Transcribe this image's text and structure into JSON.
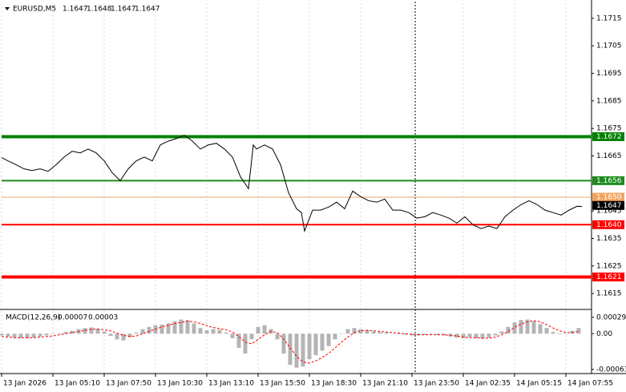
{
  "chart_data": [
    {
      "type": "line",
      "title": "EURUSD,M5",
      "ohlc": [
        1.1647,
        1.1648,
        1.1647,
        1.1647
      ],
      "color": "#000000",
      "x": [
        0,
        4,
        9,
        14,
        19,
        24,
        29,
        34,
        39,
        44,
        49,
        54,
        59,
        64,
        69,
        74,
        79,
        84,
        89,
        94,
        99,
        104,
        109,
        114,
        119,
        124,
        129,
        134,
        139,
        144,
        149,
        154,
        157,
        159,
        164,
        169,
        174,
        179,
        184,
        187,
        189,
        194,
        199,
        204,
        209,
        214,
        219,
        224,
        229,
        234,
        239,
        244,
        249,
        254,
        259,
        264,
        269,
        274,
        279,
        284,
        289,
        294,
        299,
        304,
        309,
        314,
        319,
        324,
        329,
        334,
        339,
        344,
        349,
        354,
        359,
        362
      ],
      "values": [
        1.16644,
        1.16632,
        1.16618,
        1.16603,
        1.16597,
        1.16603,
        1.16594,
        1.16618,
        1.16646,
        1.16667,
        1.16661,
        1.16675,
        1.16661,
        1.16632,
        1.16589,
        1.1656,
        1.16603,
        1.16632,
        1.16646,
        1.16632,
        1.1669,
        1.16704,
        1.16713,
        1.16725,
        1.16704,
        1.16675,
        1.1669,
        1.16696,
        1.16675,
        1.16646,
        1.16574,
        1.16531,
        1.1669,
        1.16675,
        1.1669,
        1.16675,
        1.16618,
        1.16516,
        1.16458,
        1.16444,
        1.16377,
        1.16453,
        1.16453,
        1.16464,
        1.16482,
        1.16458,
        1.16522,
        1.16502,
        1.16487,
        1.16482,
        1.16493,
        1.16453,
        1.16453,
        1.16444,
        1.16424,
        1.16429,
        1.16444,
        1.16435,
        1.16424,
        1.16406,
        1.16429,
        1.164,
        1.16386,
        1.16395,
        1.16386,
        1.16429,
        1.16453,
        1.16473,
        1.16487,
        1.16473,
        1.16453,
        1.16444,
        1.16435,
        1.16453,
        1.16467,
        1.16466
      ],
      "xlim": [
        0,
        368
      ],
      "xticks": [
        {
          "value": 0,
          "label": "13 Jan 2026"
        },
        {
          "value": 32,
          "label": "13 Jan 05:10"
        },
        {
          "value": 64,
          "label": "13 Jan 07:50"
        },
        {
          "value": 96,
          "label": "13 Jan 10:30"
        },
        {
          "value": 128,
          "label": "13 Jan 13:10"
        },
        {
          "value": 160,
          "label": "13 Jan 15:50"
        },
        {
          "value": 192,
          "label": "13 Jan 18:30"
        },
        {
          "value": 224,
          "label": "13 Jan 21:10"
        },
        {
          "value": 256,
          "label": "13 Jan 23:50"
        },
        {
          "value": 288,
          "label": "14 Jan 02:35"
        },
        {
          "value": 320,
          "label": "14 Jan 05:15"
        },
        {
          "value": 352,
          "label": "14 Jan 07:55"
        }
      ],
      "ylim": [
        1.16095,
        1.17205
      ],
      "yticks": [
        1.1615,
        1.1625,
        1.1635,
        1.1645,
        1.1665,
        1.1675,
        1.1685,
        1.1695,
        1.1705,
        1.1715
      ],
      "grid": true,
      "levels": [
        {
          "value": 1.1672,
          "label": "1.1672",
          "color": "#008000",
          "width": 4
        },
        {
          "value": 1.1656,
          "label": "1.1656",
          "color": "#1e8c1e",
          "width": 2
        },
        {
          "value": 1.165,
          "label": "1.1650",
          "color": "#f4a460",
          "width": 1
        },
        {
          "value": 1.164,
          "label": "1.1640",
          "color": "#ff0000",
          "width": 2
        },
        {
          "value": 1.1621,
          "label": "1.1621",
          "color": "#ff0000",
          "width": 4
        }
      ],
      "last": 1.1647
    },
    {
      "type": "macd",
      "title": "MACD(12,26,9)",
      "title_values": [
        7e-05,
        3e-05
      ],
      "x": [
        0,
        4,
        8,
        12,
        16,
        20,
        24,
        28,
        32,
        36,
        40,
        44,
        48,
        52,
        56,
        60,
        64,
        68,
        72,
        76,
        80,
        84,
        88,
        92,
        96,
        100,
        104,
        108,
        112,
        116,
        120,
        124,
        128,
        132,
        136,
        140,
        144,
        148,
        152,
        156,
        160,
        164,
        168,
        172,
        176,
        180,
        184,
        188,
        192,
        196,
        200,
        204,
        208,
        212,
        216,
        220,
        224,
        228,
        232,
        236,
        240,
        244,
        248,
        252,
        256,
        260,
        264,
        268,
        272,
        276,
        280,
        284,
        288,
        292,
        296,
        300,
        304,
        308,
        312,
        316,
        320,
        324,
        328,
        332,
        336,
        340,
        344,
        348,
        352,
        356,
        360
      ],
      "histogram": {
        "color": "#b4b4b4",
        "values": [
          -3e-05,
          -5e-05,
          -7e-05,
          -8e-05,
          -8e-05,
          -7e-05,
          -5e-05,
          -3e-05,
          -1e-05,
          1e-05,
          3e-05,
          5e-05,
          8e-05,
          0.0001,
          0.00011,
          9e-05,
          4e-05,
          -4e-05,
          -0.0001,
          -0.00012,
          -6e-05,
          2e-05,
          8e-05,
          0.00012,
          0.00015,
          0.00016,
          0.00018,
          0.00022,
          0.00025,
          0.00024,
          0.00018,
          0.0001,
          6e-05,
          8e-05,
          7e-05,
          2e-05,
          -8e-05,
          -0.00025,
          -0.00035,
          -0.0001,
          0.00012,
          0.00015,
          8e-05,
          -0.0001,
          -0.00035,
          -0.00055,
          -0.0006,
          -0.00058,
          -0.00045,
          -0.00038,
          -0.0003,
          -0.00022,
          -0.0001,
          0,
          8e-05,
          0.0001,
          8e-05,
          6e-05,
          4e-05,
          3e-05,
          2e-05,
          0,
          -1e-05,
          -2e-05,
          -3e-05,
          -3e-05,
          -2e-05,
          -1e-05,
          -2e-05,
          -3e-05,
          -5e-05,
          -7e-05,
          -8e-05,
          -6e-05,
          -8e-05,
          -9e-05,
          -7e-05,
          -3e-05,
          4e-05,
          0.00012,
          0.0002,
          0.00024,
          0.00025,
          0.00022,
          0.00017,
          0.0001,
          3e-05,
          -1e-05,
          0,
          5e-05,
          0.0001
        ]
      },
      "signal": {
        "color": "#ff0000",
        "values": [
          -5e-05,
          -6e-05,
          -7e-05,
          -7e-05,
          -7e-05,
          -7e-05,
          -6e-05,
          -5e-05,
          -4e-05,
          -2e-05,
          0,
          2e-05,
          4e-05,
          6e-05,
          8e-05,
          8e-05,
          7e-05,
          5e-05,
          1e-05,
          -3e-05,
          -5e-05,
          -4e-05,
          0,
          4e-05,
          8e-05,
          0.00012,
          0.00015,
          0.00018,
          0.0002,
          0.00022,
          0.00021,
          0.00018,
          0.00014,
          0.00011,
          9e-05,
          7e-05,
          3e-05,
          -5e-05,
          -0.00015,
          -0.00018,
          -0.0001,
          -2e-05,
          4e-05,
          2e-05,
          -0.0001,
          -0.00025,
          -0.0004,
          -0.0005,
          -0.00052,
          -0.00048,
          -0.00042,
          -0.00035,
          -0.00025,
          -0.00015,
          -6e-05,
          2e-05,
          5e-05,
          6e-05,
          5e-05,
          4e-05,
          3e-05,
          2e-05,
          1e-05,
          0,
          -1e-05,
          -2e-05,
          -2e-05,
          -2e-05,
          -2e-05,
          -2e-05,
          -3e-05,
          -4e-05,
          -6e-05,
          -7e-05,
          -7e-05,
          -8e-05,
          -8e-05,
          -6e-05,
          -2e-05,
          4e-05,
          0.00011,
          0.00017,
          0.00021,
          0.00023,
          0.00021,
          0.00016,
          0.0001,
          5e-05,
          2e-05,
          2e-05,
          4e-05
        ]
      },
      "ylim": [
        -0.00069,
        0.0004
      ],
      "yticks": [
        -0.00063,
        {
          "value": 0,
          "label": "0.00"
        },
        0.00029
      ]
    }
  ]
}
